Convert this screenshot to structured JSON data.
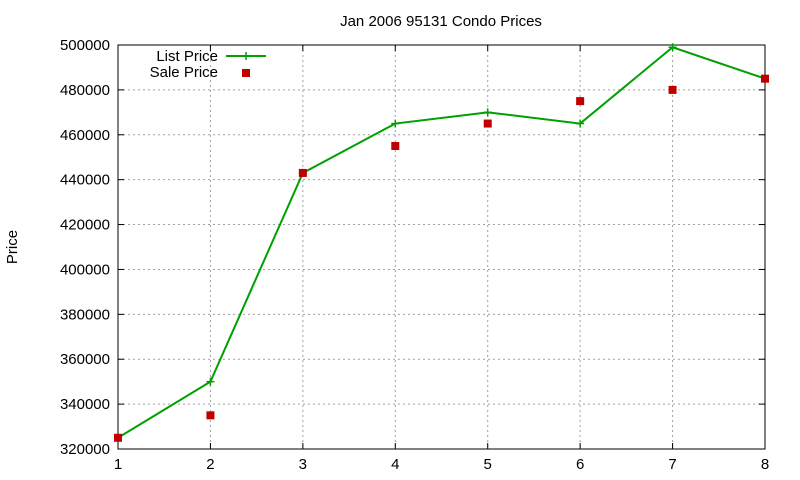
{
  "chart_data": {
    "type": "line",
    "title": "Jan 2006 95131 Condo Prices",
    "xlabel": "",
    "ylabel": "Price",
    "x": [
      1,
      2,
      3,
      4,
      5,
      6,
      7,
      8
    ],
    "xlim": [
      1,
      8
    ],
    "ylim": [
      320000,
      500000
    ],
    "xticks": [
      1,
      2,
      3,
      4,
      5,
      6,
      7,
      8
    ],
    "yticks": [
      320000,
      340000,
      360000,
      380000,
      400000,
      420000,
      440000,
      460000,
      480000,
      500000
    ],
    "grid": true,
    "legend_position": "top-left",
    "series": [
      {
        "name": "List Price",
        "style": "lines+points",
        "marker": "plus",
        "color": "#00a000",
        "values": [
          325000,
          350000,
          443000,
          465000,
          470000,
          465000,
          499000,
          485000
        ]
      },
      {
        "name": "Sale Price",
        "style": "points",
        "marker": "square",
        "color": "#c00000",
        "values": [
          325000,
          335000,
          443000,
          455000,
          465000,
          475000,
          480000,
          485000
        ]
      }
    ]
  }
}
